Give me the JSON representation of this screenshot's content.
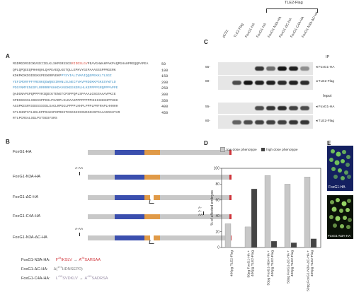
{
  "panel_labels": {
    "a": "A",
    "b": "B",
    "c": "C",
    "d": "D",
    "e": "E"
  },
  "panel_a": {
    "lines": [
      {
        "parts": [
          {
            "t": "MSDMGDRSDIKVGDIIGLKLSKPGRSSGS",
            "c": "#444"
          },
          {
            "t": "RIDDSLGV",
            "c": "#d9493a"
          },
          {
            "t": "PEAVGHWAHPAKPAQPGHAHPRGQQPAPEA",
            "c": "#444"
          }
        ],
        "num": "50"
      },
      {
        "parts": [
          {
            "t": "QPLQPQEEQPHHHQHLQAPEAEQLKETQLLEPKVYGEPAAASSGPPRGERK",
            "c": "#444"
          }
        ],
        "num": "100"
      },
      {
        "parts": [
          {
            "t": "KDKPKDKDSDSGKGPEGKRRVEKP",
            "c": "#444"
          },
          {
            "t": "PYSYIALIVMAIQQSPEKKLTLSGI",
            "c": "#3a8fc4"
          }
        ],
        "num": "150"
      },
      {
        "parts": [
          {
            "t": "YEFIMDRFPFYRENKQGWQNSIRHNLSLNECFVKVPRDDKKPGKGSYWTLD",
            "c": "#3a8fc4"
          }
        ],
        "num": "200"
      },
      {
        "parts": [
          {
            "t": "PDSYNMFENGSFLRRRRRFKKKDAVKDKEEKDRLHLKEPPPPGRQPPPAPPE",
            "c": "#3a8fc4"
          }
        ],
        "num": "250"
      },
      {
        "parts": [
          {
            "t": "QADGNAPGPQPPPVRIQDIKTENGTCPSPPQPLSPAAALGSGSAAAVPKIE",
            "c": "#444"
          }
        ],
        "num": "300"
      },
      {
        "parts": [
          {
            "t": "SPDSSSSSLSSGSSPPGSLPSARPLSLDAAGPPPPPPPPHHHHHHHHPPHHH",
            "c": "#444"
          }
        ],
        "num": "350"
      },
      {
        "parts": [
          {
            "t": "AGSPKEGRVSSSSSSSSLSAGLRPGGLPPPPLHHPLPPPLPRFRAPLHHHHH",
            "c": "#444"
          }
        ],
        "num": "400"
      },
      {
        "parts": [
          {
            "t": "STLSHNTSYLHSLEPPSAKSPGPRKSTGSGSGSSSNSSGHSPSAAAGDGHTAR",
            "c": "#444"
          }
        ],
        "num": "450"
      },
      {
        "parts": [
          {
            "t": "RTLPCRGALSGLPSTSGSYSRS",
            "c": "#444"
          }
        ],
        "num": ""
      }
    ]
  },
  "panel_b": {
    "constructs": [
      {
        "label": "FoxG1-HA",
        "marker": ""
      },
      {
        "label": "FoxG1-N3A-HA",
        "marker": "A-AA"
      },
      {
        "label": "FoxG1-ΔC-HA",
        "marker": ""
      },
      {
        "label": "FoxG1-C4A-HA",
        "marker": "A-A-AA"
      },
      {
        "label": "FoxG1-N3A-ΔC-HA",
        "marker": "A-AA"
      }
    ],
    "mutations": [
      {
        "label": "FoxG1-N3A-HA:",
        "from": "F",
        "from_num": "28",
        "from_seq": "IKSLV",
        "arrow": "→",
        "to": "A",
        "to_num": "28",
        "to_seq": "SARSAA"
      },
      {
        "label": "FoxG1-ΔC-HA:",
        "from": "Δ(",
        "from_num": "174",
        "from_seq": "HDNSEPD)",
        "arrow": "",
        "to": "",
        "to_num": "",
        "to_seq": ""
      },
      {
        "label": "FoxG1-C4A-HA:",
        "from": "L",
        "from_num": "415",
        "from_seq": "SVDKLV",
        "arrow": "→",
        "to": "A",
        "to_num": "415",
        "to_seq": "SADRSA"
      }
    ]
  },
  "panel_c": {
    "header": "TLE2-Flag",
    "lanes": [
      "pCS2",
      "TLE2-Flag",
      "FoxG1-HA",
      "FoxG1-HA",
      "FoxG1-N3A-HA",
      "FoxG1-ΔC-HA",
      "FoxG1-C4A-HA",
      "FoxG1-N3A-ΔC-HA"
    ],
    "ip_label": "IP",
    "input_label": "Input",
    "markers": [
      "55-",
      "80-",
      "55-",
      "80-"
    ],
    "band_labels": [
      "FoxG1-HA",
      "TLE2-Flag",
      "FoxG1-HA",
      "TLE2-Flag"
    ]
  },
  "panel_d": {
    "legend": [
      "low dose phenotype",
      "high dose phenotype"
    ],
    "ylabel": "% of affected embryos",
    "yticks": [
      "100",
      "80",
      "60",
      "40",
      "20",
      "0"
    ]
  },
  "chart_data": {
    "type": "bar",
    "categories": [
      "400pg TLE2-Flag",
      "50pg FoxG1-HA + 400pg TLE2-Flag",
      "50pg FoxG1-N3A-HA + 400pg TLE2-Flag",
      "50pg FoxG1-ΔC-HA + 400pg TLE2-Flag",
      "50pg FoxG1-N3A-ΔC-HA + 400pg TLE2-Flag"
    ],
    "series": [
      {
        "name": "low dose phenotype",
        "values": [
          30,
          26,
          91,
          80,
          89
        ],
        "color": "#c8c8c8"
      },
      {
        "name": "high dose phenotype",
        "values": [
          0,
          74,
          8,
          6,
          11
        ],
        "color": "#444444"
      }
    ],
    "ylabel": "% of affected embryos",
    "ylim": [
      0,
      100
    ],
    "legend": "top"
  },
  "panel_e": {
    "captions": [
      "FoxG1-HA",
      "FoxG1-N3A-HA"
    ]
  },
  "colors": {
    "grey": "#c8c8c8",
    "blue": "#3b4fae",
    "orange": "#e09a48",
    "red": "#d0343a"
  }
}
